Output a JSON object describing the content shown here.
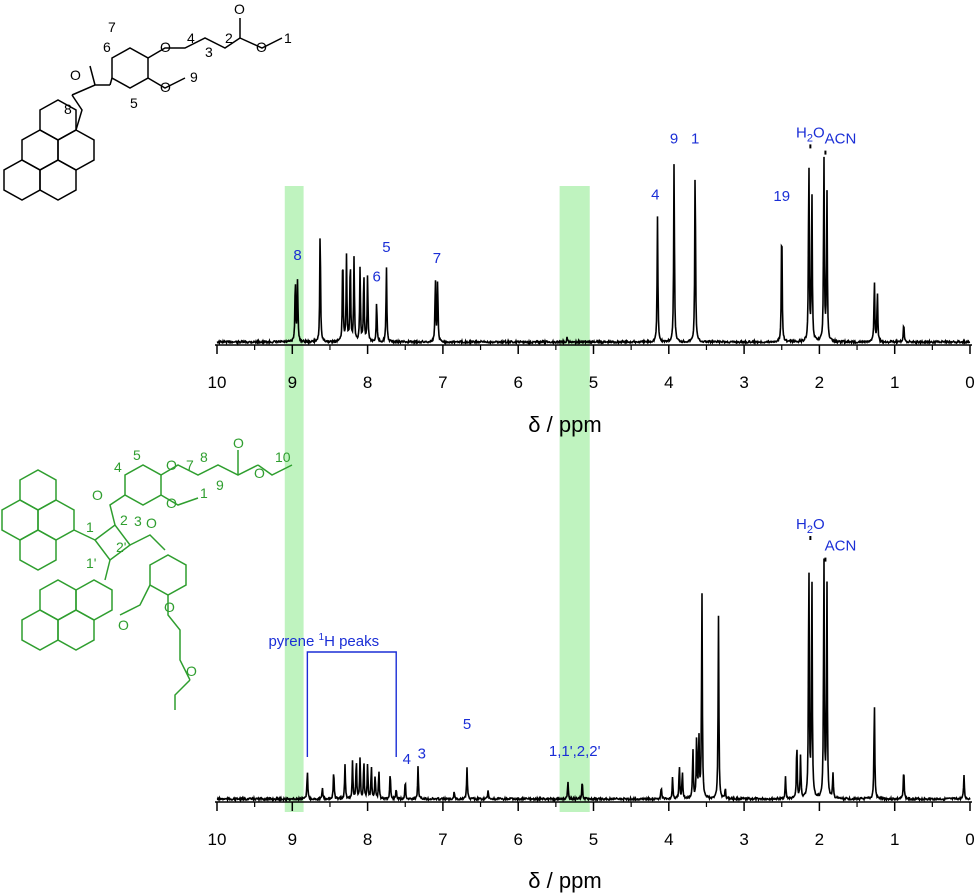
{
  "colors": {
    "spectrum": "#000000",
    "annotation": "#1a2ed6",
    "highlight": "#b8f2b8",
    "molecule_bottom": "#2f9e2f",
    "molecule_top": "#000000"
  },
  "chart_data": [
    {
      "type": "line",
      "panel": "top",
      "xlabel": "δ / ppm",
      "xlim": [
        10,
        0
      ],
      "x_reversed": true,
      "xticks": [
        "10",
        "9",
        "8",
        "7",
        "6",
        "5",
        "4",
        "3",
        "2",
        "1",
        "0"
      ],
      "highlight_bands": [
        [
          9.1,
          8.85
        ],
        [
          5.45,
          5.05
        ]
      ],
      "peaks": [
        {
          "x": 8.93,
          "y": 0.4
        },
        {
          "x": 8.96,
          "y": 0.42
        },
        {
          "x": 8.63,
          "y": 0.75
        },
        {
          "x": 8.33,
          "y": 0.59
        },
        {
          "x": 8.28,
          "y": 0.56
        },
        {
          "x": 8.23,
          "y": 0.55
        },
        {
          "x": 8.18,
          "y": 0.55
        },
        {
          "x": 8.1,
          "y": 0.48
        },
        {
          "x": 8.05,
          "y": 0.46
        },
        {
          "x": 8.0,
          "y": 0.44
        },
        {
          "x": 7.88,
          "y": 0.27
        },
        {
          "x": 7.75,
          "y": 0.49
        },
        {
          "x": 7.1,
          "y": 0.41
        },
        {
          "x": 7.07,
          "y": 0.4
        },
        {
          "x": 5.35,
          "y": 0.03
        },
        {
          "x": 4.15,
          "y": 0.81
        },
        {
          "x": 3.93,
          "y": 1.17
        },
        {
          "x": 3.65,
          "y": 1.17
        },
        {
          "x": 2.5,
          "y": 0.8
        },
        {
          "x": 2.14,
          "y": 1.2
        },
        {
          "x": 2.1,
          "y": 1.0
        },
        {
          "x": 1.94,
          "y": 1.2
        },
        {
          "x": 1.9,
          "y": 0.98
        },
        {
          "x": 1.27,
          "y": 0.41
        },
        {
          "x": 1.23,
          "y": 0.33
        },
        {
          "x": 0.88,
          "y": 0.12
        }
      ],
      "annotations": [
        {
          "label": "8",
          "x": 8.93,
          "y": 0.53
        },
        {
          "label": "5",
          "x": 7.75,
          "y": 0.58
        },
        {
          "label": "6",
          "x": 7.88,
          "y": 0.39
        },
        {
          "label": "7",
          "x": 7.08,
          "y": 0.51
        },
        {
          "label": "4",
          "x": 4.18,
          "y": 0.92
        },
        {
          "label": "9",
          "x": 3.93,
          "y": 1.28
        },
        {
          "label": "1",
          "x": 3.65,
          "y": 1.28
        },
        {
          "label": "19",
          "x": 2.5,
          "y": 0.91
        }
      ],
      "special_labels": [
        {
          "label": "H2O",
          "x": 2.12,
          "y": 1.32
        },
        {
          "label": "ACN",
          "x": 1.72,
          "y": 1.28
        }
      ]
    },
    {
      "type": "line",
      "panel": "bottom",
      "xlabel": "δ / ppm",
      "xlim": [
        10,
        0
      ],
      "x_reversed": true,
      "xticks": [
        "10",
        "9",
        "8",
        "7",
        "6",
        "5",
        "4",
        "3",
        "2",
        "1",
        "0"
      ],
      "highlight_bands": [
        [
          9.1,
          8.85
        ],
        [
          5.45,
          5.05
        ]
      ],
      "peaks": [
        {
          "x": 8.8,
          "y": 0.11
        },
        {
          "x": 8.6,
          "y": 0.04
        },
        {
          "x": 8.45,
          "y": 0.11
        },
        {
          "x": 8.3,
          "y": 0.13
        },
        {
          "x": 8.2,
          "y": 0.14
        },
        {
          "x": 8.15,
          "y": 0.15
        },
        {
          "x": 8.1,
          "y": 0.15
        },
        {
          "x": 8.05,
          "y": 0.14
        },
        {
          "x": 8.0,
          "y": 0.13
        },
        {
          "x": 7.95,
          "y": 0.12
        },
        {
          "x": 7.9,
          "y": 0.09
        },
        {
          "x": 7.85,
          "y": 0.1
        },
        {
          "x": 7.7,
          "y": 0.1
        },
        {
          "x": 7.62,
          "y": 0.04
        },
        {
          "x": 7.5,
          "y": 0.07
        },
        {
          "x": 7.33,
          "y": 0.12
        },
        {
          "x": 6.85,
          "y": 0.03
        },
        {
          "x": 6.68,
          "y": 0.12
        },
        {
          "x": 6.4,
          "y": 0.03
        },
        {
          "x": 5.34,
          "y": 0.07
        },
        {
          "x": 5.15,
          "y": 0.07
        },
        {
          "x": 4.1,
          "y": 0.05
        },
        {
          "x": 3.95,
          "y": 0.08
        },
        {
          "x": 3.86,
          "y": 0.13
        },
        {
          "x": 3.82,
          "y": 0.1
        },
        {
          "x": 3.68,
          "y": 0.19
        },
        {
          "x": 3.63,
          "y": 0.24
        },
        {
          "x": 3.6,
          "y": 0.22
        },
        {
          "x": 3.56,
          "y": 0.77
        },
        {
          "x": 3.34,
          "y": 0.68
        },
        {
          "x": 3.25,
          "y": 0.04
        },
        {
          "x": 2.45,
          "y": 0.08
        },
        {
          "x": 2.3,
          "y": 0.21
        },
        {
          "x": 2.25,
          "y": 0.16
        },
        {
          "x": 2.14,
          "y": 0.9
        },
        {
          "x": 2.1,
          "y": 0.85
        },
        {
          "x": 1.94,
          "y": 0.9
        },
        {
          "x": 1.9,
          "y": 0.8
        },
        {
          "x": 1.82,
          "y": 0.09
        },
        {
          "x": 1.27,
          "y": 0.37
        },
        {
          "x": 0.88,
          "y": 0.12
        },
        {
          "x": 0.08,
          "y": 0.09
        }
      ],
      "annotations": [
        {
          "label": "5",
          "x": 6.68,
          "y": 0.26
        },
        {
          "label": "4",
          "x": 7.48,
          "y": 0.13
        },
        {
          "label": "3",
          "x": 7.28,
          "y": 0.15
        },
        {
          "label": "1,1',2,2'",
          "x": 5.25,
          "y": 0.16
        }
      ],
      "special_labels": [
        {
          "label": "H2O",
          "x": 2.12,
          "y": 1.0
        },
        {
          "label": "ACN",
          "x": 1.72,
          "y": 0.92
        }
      ],
      "bracket_label": "pyrene 1H peaks",
      "bracket_range": [
        8.8,
        7.62
      ]
    }
  ],
  "molecule_labels_top": [
    "7",
    "6",
    "4",
    "3",
    "2",
    "1",
    "O",
    "O",
    "O",
    "O",
    "O",
    "9",
    "5",
    "8"
  ],
  "molecule_labels_bottom": [
    "4",
    "5",
    "7",
    "8",
    "10",
    "9",
    "1",
    "O",
    "O",
    "O",
    "O",
    "O",
    "O",
    "O",
    "O",
    "3",
    "2",
    "1",
    "2'",
    "1'",
    "O"
  ]
}
